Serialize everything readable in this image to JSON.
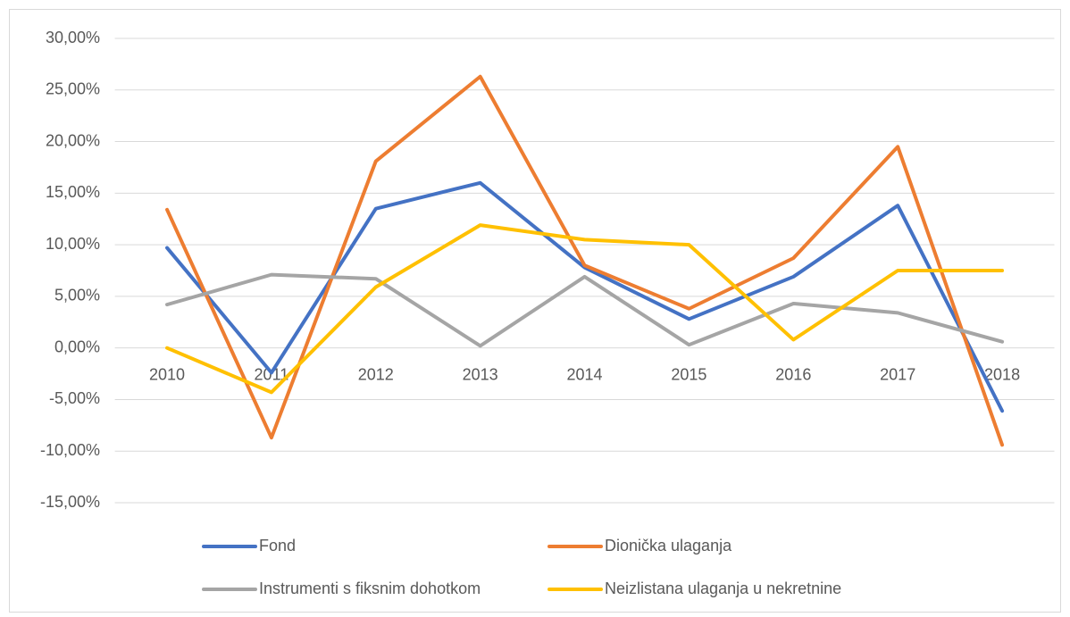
{
  "chart_data": {
    "type": "line",
    "categories": [
      "2010",
      "2011",
      "2012",
      "2013",
      "2014",
      "2015",
      "2016",
      "2017",
      "2018"
    ],
    "series": [
      {
        "name": "Fond",
        "color": "#4472c4",
        "values": [
          9.7,
          -2.4,
          13.5,
          16.0,
          7.8,
          2.8,
          6.9,
          13.8,
          -6.1
        ]
      },
      {
        "name": "Dionička ulaganja",
        "color": "#ed7d31",
        "values": [
          13.4,
          -8.7,
          18.1,
          26.3,
          8.0,
          3.8,
          8.7,
          19.5,
          -9.4
        ]
      },
      {
        "name": "Instrumenti s fiksnim dohotkom",
        "color": "#a5a5a5",
        "values": [
          4.2,
          7.1,
          6.7,
          0.2,
          6.9,
          0.3,
          4.3,
          3.4,
          0.6
        ]
      },
      {
        "name": "Neizlistana ulaganja u nekretnine",
        "color": "#ffc000",
        "values": [
          0,
          -4.3,
          5.9,
          11.9,
          10.5,
          10.0,
          0.8,
          7.5,
          7.5
        ]
      }
    ],
    "ylim": [
      -15,
      30
    ],
    "yticks": [
      {
        "value": -15,
        "label": "-15,00%"
      },
      {
        "value": -10,
        "label": "-10,00%"
      },
      {
        "value": -5,
        "label": "-5,00%"
      },
      {
        "value": 0,
        "label": "0,00%"
      },
      {
        "value": 5,
        "label": "5,00%"
      },
      {
        "value": 10,
        "label": "10,00%"
      },
      {
        "value": 15,
        "label": "15,00%"
      },
      {
        "value": 20,
        "label": "20,00%"
      },
      {
        "value": 25,
        "label": "25,00%"
      },
      {
        "value": 30,
        "label": "30,00%"
      }
    ],
    "grid": true,
    "legend": "bottom"
  }
}
